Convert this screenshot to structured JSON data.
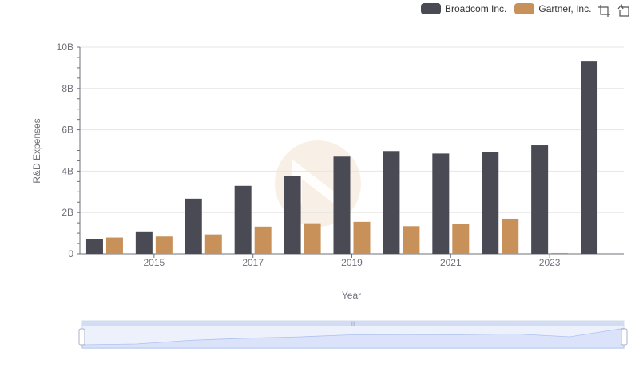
{
  "legend": {
    "items": [
      "Broadcom Inc.",
      "Gartner, Inc."
    ]
  },
  "toolbar": {
    "icons": [
      "crop-icon",
      "reset-icon"
    ]
  },
  "colors": {
    "series": [
      "#4a4a55",
      "#c8915a"
    ],
    "axis": "#6e7079",
    "grid": "#e6e6e6",
    "watermark": "#f3e6d6",
    "zoom_fill": "#dde5fb",
    "zoom_line": "#8fa8e8"
  },
  "chart_data": {
    "type": "bar",
    "xlabel": "Year",
    "ylabel": "R&D Expenses",
    "ylim": [
      0,
      10000000000
    ],
    "y_ticks": [
      "0",
      "2B",
      "4B",
      "6B",
      "8B",
      "10B"
    ],
    "x_tick_labels": [
      "2015",
      "2017",
      "2019",
      "2021",
      "2023"
    ],
    "categories": [
      "2014",
      "2015",
      "2016",
      "2017",
      "2018",
      "2019",
      "2020",
      "2021",
      "2022",
      "2023",
      "2024"
    ],
    "series": [
      {
        "name": "Broadcom Inc.",
        "values": [
          700000000,
          1050000000,
          2670000000,
          3290000000,
          3770000000,
          4700000000,
          4970000000,
          4850000000,
          4920000000,
          5250000000,
          9300000000
        ]
      },
      {
        "name": "Gartner, Inc.",
        "values": [
          790000000,
          840000000,
          940000000,
          1320000000,
          1480000000,
          1550000000,
          1340000000,
          1450000000,
          1700000000,
          40000000,
          null
        ]
      }
    ],
    "grid": true,
    "legend_position": "top-right",
    "zoom_slider": true
  }
}
